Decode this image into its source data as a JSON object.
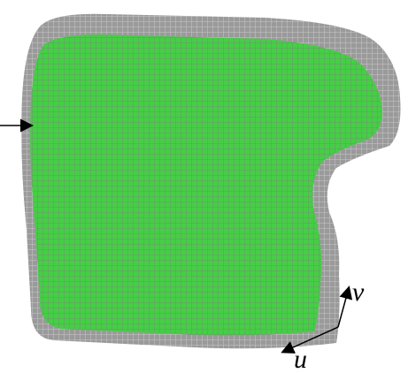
{
  "labels": {
    "v": "v",
    "u": "u"
  }
}
